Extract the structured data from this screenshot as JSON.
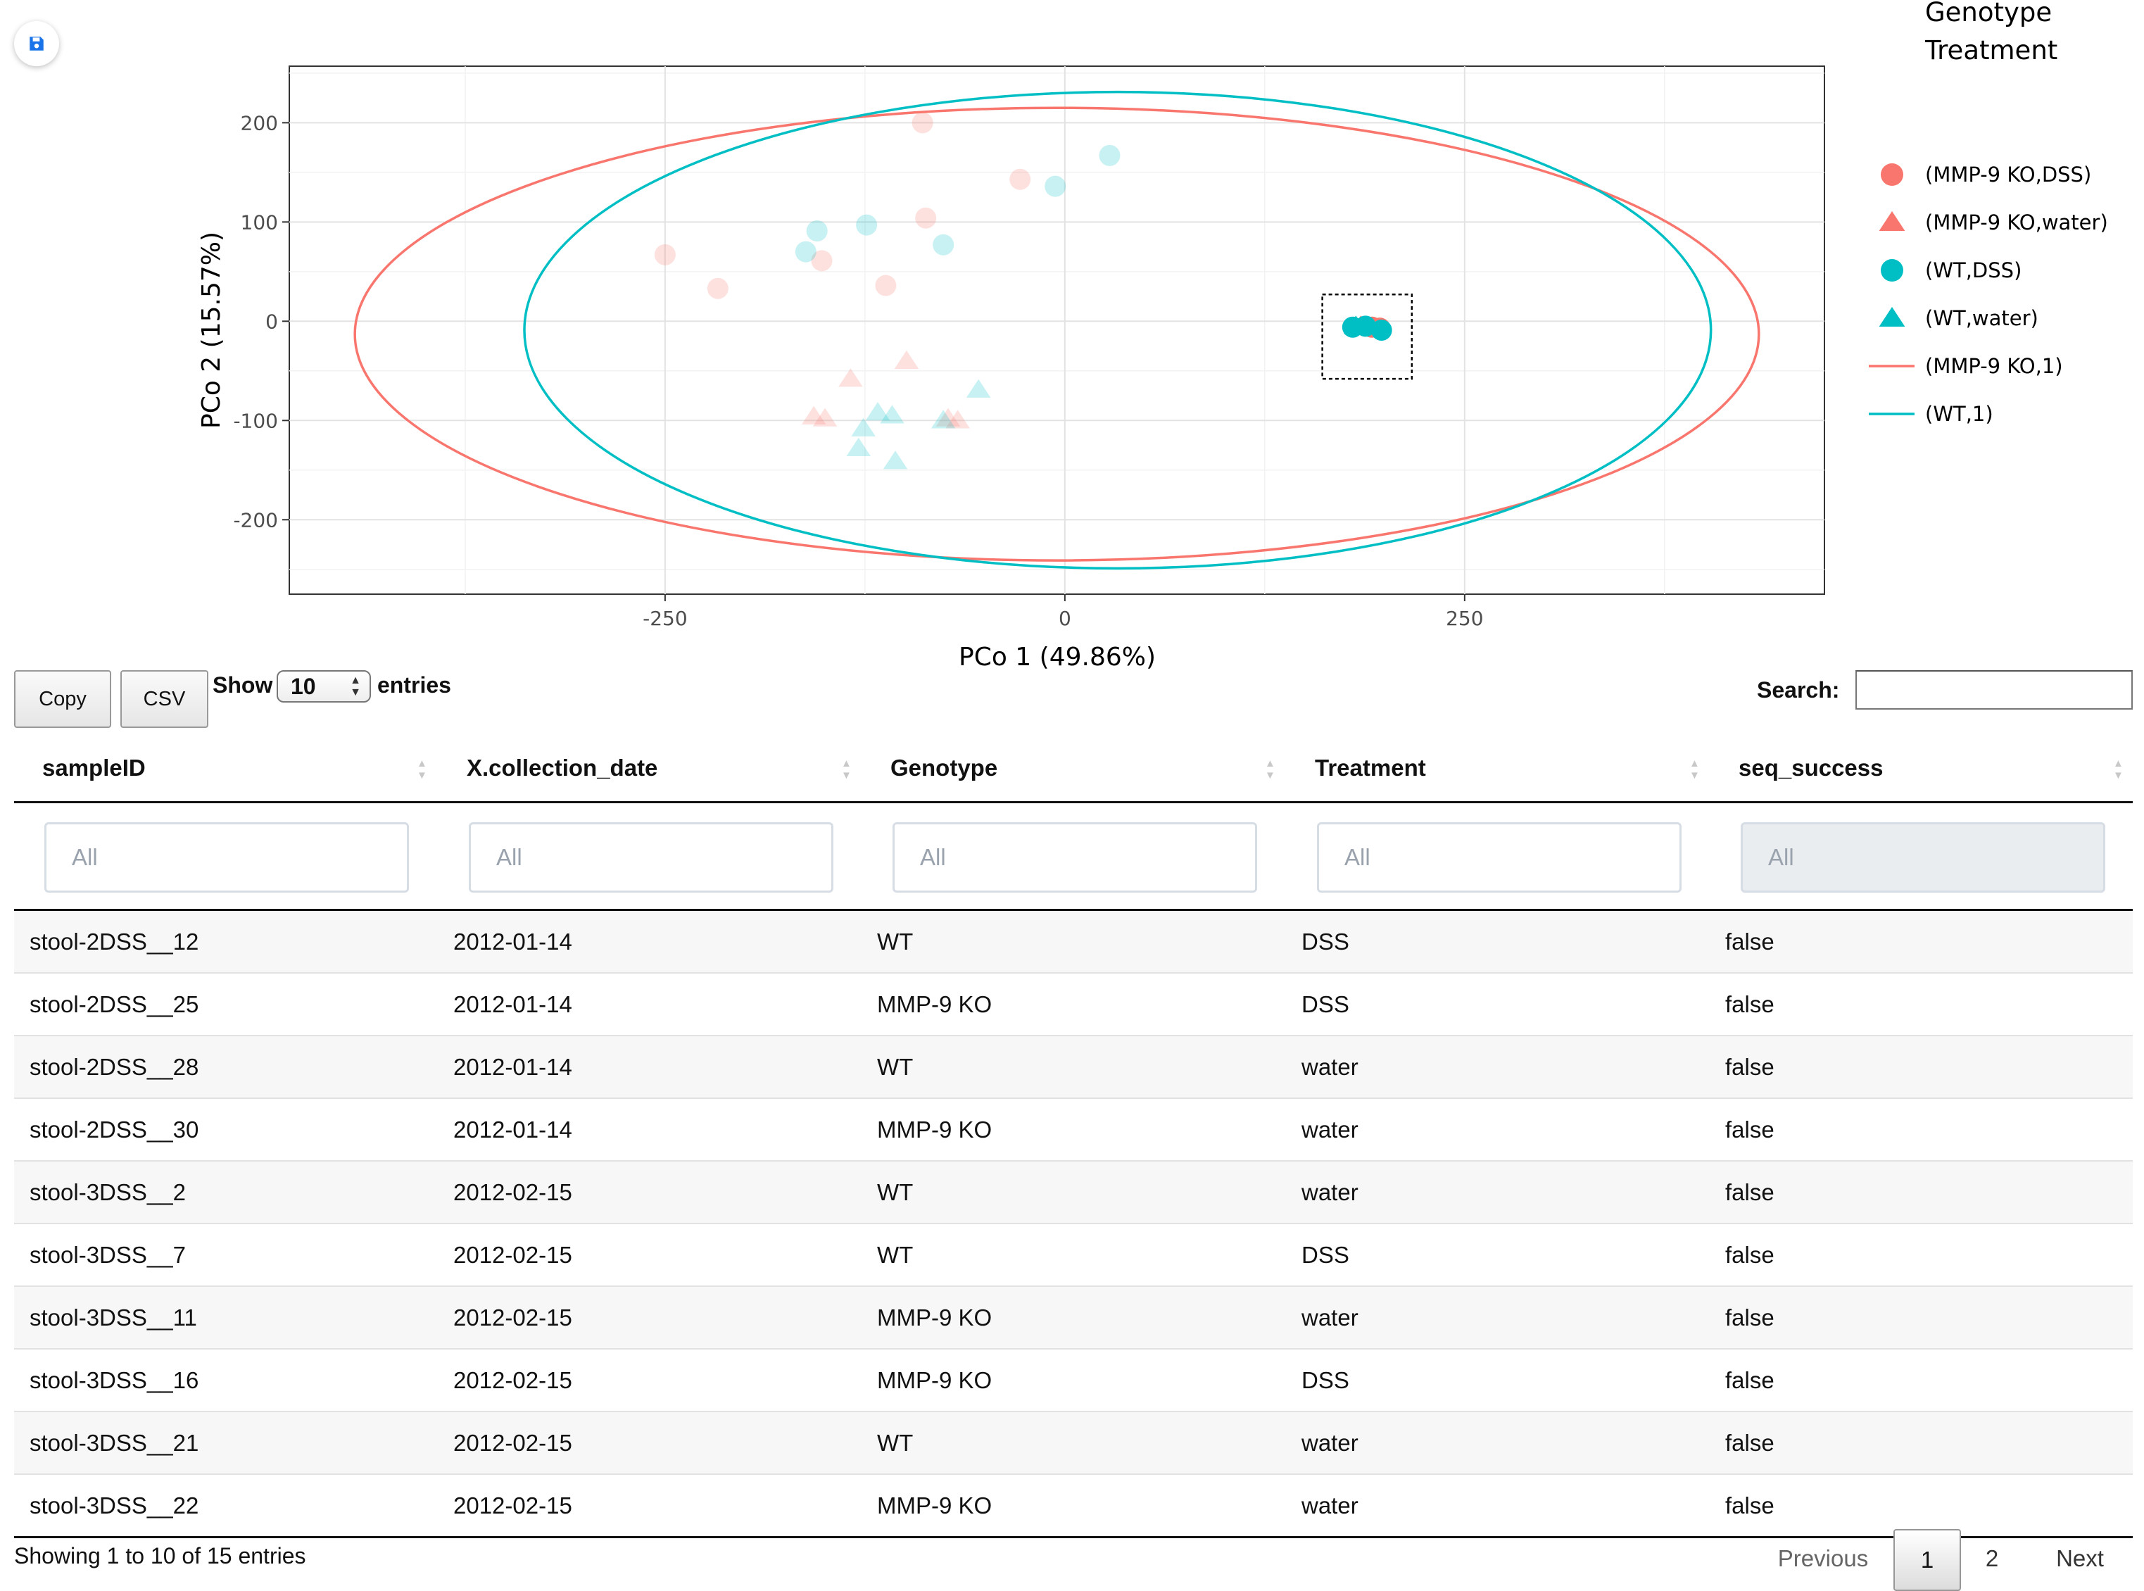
{
  "chart_data": {
    "type": "scatter",
    "xlabel": "PCo 1 (49.86%)",
    "ylabel": "PCo 2 (15.57%)",
    "xlim": [
      -485,
      475
    ],
    "ylim": [
      -275,
      257
    ],
    "x_ticks": [
      -250,
      0,
      250
    ],
    "y_ticks": [
      -200,
      -100,
      0,
      100,
      200
    ],
    "x_tick_labels": [
      "-250",
      "0",
      "250"
    ],
    "y_tick_labels": [
      "-200",
      "-100",
      "0",
      "100",
      "200"
    ],
    "grid": true,
    "legend_title": "Genotype\nTreatment",
    "legend_title_lines": [
      "Genotype",
      "Treatment"
    ],
    "legend_position": "right",
    "colors": {
      "mmp9": "#F8766D",
      "wt": "#00BFC4"
    },
    "series": [
      {
        "name": "(MMP-9 KO,DSS)",
        "marker": "circle",
        "color": "#F8766D",
        "faded": {
          "x": [
            -89,
            -28,
            -87,
            -250,
            -217,
            -152,
            -112
          ],
          "y": [
            200,
            143,
            104,
            67,
            33,
            61,
            36
          ]
        },
        "highlighted": {
          "x": [
            192,
            197
          ],
          "y": [
            -6,
            -7
          ]
        }
      },
      {
        "name": "(MMP-9 KO,water)",
        "marker": "triangle",
        "color": "#F8766D",
        "faded": {
          "x": [
            -134,
            -99,
            -157,
            -150,
            -73,
            -67
          ],
          "y": [
            -58,
            -40,
            -96,
            -98,
            -98,
            -100
          ]
        },
        "highlighted": {
          "x": [
            185
          ],
          "y": [
            -5
          ]
        }
      },
      {
        "name": "(WT,DSS)",
        "marker": "circle",
        "color": "#00BFC4",
        "faded": {
          "x": [
            28,
            -6,
            -124,
            -155,
            -162,
            -76
          ],
          "y": [
            167,
            136,
            97,
            91,
            70,
            77
          ]
        },
        "highlighted": {
          "x": [
            180,
            188,
            198
          ],
          "y": [
            -6,
            -5,
            -9
          ]
        }
      },
      {
        "name": "(WT,water)",
        "marker": "triangle",
        "color": "#00BFC4",
        "faded": {
          "x": [
            -54,
            -117,
            -108,
            -126,
            -106,
            -76,
            -129
          ],
          "y": [
            -69,
            -92,
            -95,
            -108,
            -141,
            -100,
            -128
          ]
        },
        "highlighted": {
          "x": [
            182
          ],
          "y": [
            -5
          ]
        }
      },
      {
        "name": "(MMP-9 KO,1)",
        "type": "ellipse",
        "color": "#F8766D",
        "center": [
          -5,
          -13
        ],
        "rx": 439,
        "ry": 228
      },
      {
        "name": "(WT,1)",
        "type": "ellipse",
        "color": "#00BFC4",
        "center": [
          33,
          -9
        ],
        "rx": 371,
        "ry": 240
      }
    ],
    "selection_box": {
      "x": [
        161,
        217
      ],
      "y": [
        -58,
        27
      ]
    }
  },
  "save_button": {
    "icon": "floppy-disk-icon",
    "color": "#1a73e8"
  },
  "buttons": {
    "copy": "Copy",
    "csv": "CSV"
  },
  "length": {
    "show": "Show",
    "value": "10",
    "entries": "entries"
  },
  "search": {
    "label": "Search:",
    "value": ""
  },
  "table": {
    "columns": [
      "sampleID",
      "X.collection_date",
      "Genotype",
      "Treatment",
      "seq_success"
    ],
    "filter_placeholder": "All",
    "rows": [
      [
        "stool-2DSS__12",
        "2012-01-14",
        "WT",
        "DSS",
        "false"
      ],
      [
        "stool-2DSS__25",
        "2012-01-14",
        "MMP-9 KO",
        "DSS",
        "false"
      ],
      [
        "stool-2DSS__28",
        "2012-01-14",
        "WT",
        "water",
        "false"
      ],
      [
        "stool-2DSS__30",
        "2012-01-14",
        "MMP-9 KO",
        "water",
        "false"
      ],
      [
        "stool-3DSS__2",
        "2012-02-15",
        "WT",
        "water",
        "false"
      ],
      [
        "stool-3DSS__7",
        "2012-02-15",
        "WT",
        "DSS",
        "false"
      ],
      [
        "stool-3DSS__11",
        "2012-02-15",
        "MMP-9 KO",
        "water",
        "false"
      ],
      [
        "stool-3DSS__16",
        "2012-02-15",
        "MMP-9 KO",
        "DSS",
        "false"
      ],
      [
        "stool-3DSS__21",
        "2012-02-15",
        "WT",
        "water",
        "false"
      ],
      [
        "stool-3DSS__22",
        "2012-02-15",
        "MMP-9 KO",
        "water",
        "false"
      ]
    ]
  },
  "info": "Showing 1 to 10 of 15 entries",
  "pagination": {
    "previous": "Previous",
    "current": "1",
    "page2": "2",
    "next": "Next"
  }
}
